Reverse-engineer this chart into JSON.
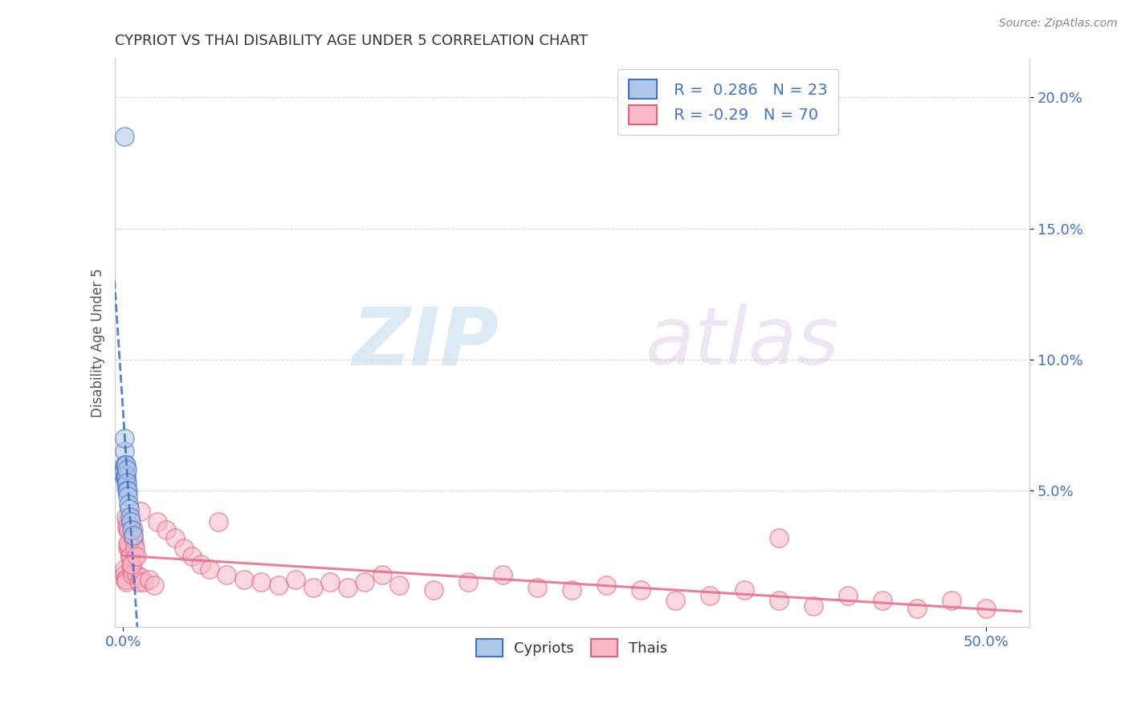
{
  "title": "CYPRIOT VS THAI DISABILITY AGE UNDER 5 CORRELATION CHART",
  "source_text": "Source: ZipAtlas.com",
  "xlim": [
    -0.005,
    0.525
  ],
  "ylim": [
    -0.002,
    0.215
  ],
  "cypriot_fill_color": "#aec6e8",
  "cypriot_edge_color": "#4472c4",
  "thai_fill_color": "#f9b8c8",
  "thai_edge_color": "#e06080",
  "cypriot_line_color": "#3a6bc4",
  "thai_line_color": "#e87090",
  "R_cypriot": 0.286,
  "N_cypriot": 23,
  "R_thai": -0.29,
  "N_thai": 70,
  "legend_label_cypriot": "Cypriots",
  "legend_label_thai": "Thais",
  "watermark_zip": "ZIP",
  "watermark_atlas": "atlas",
  "title_color": "#333333",
  "axis_tick_color": "#4472c4",
  "ylabel_color": "#555555",
  "source_color": "#888888",
  "grid_color": "#cccccc",
  "cypriot_x": [
    0.0008,
    0.0008,
    0.001,
    0.001,
    0.001,
    0.0012,
    0.0012,
    0.0015,
    0.0015,
    0.0018,
    0.0018,
    0.002,
    0.002,
    0.0022,
    0.0025,
    0.0028,
    0.003,
    0.0035,
    0.004,
    0.0045,
    0.005,
    0.006,
    0.0008
  ],
  "cypriot_y": [
    0.185,
    0.06,
    0.055,
    0.065,
    0.058,
    0.06,
    0.055,
    0.06,
    0.055,
    0.056,
    0.052,
    0.058,
    0.053,
    0.05,
    0.05,
    0.048,
    0.045,
    0.043,
    0.04,
    0.038,
    0.035,
    0.033,
    0.07
  ],
  "thai_x": [
    0.0008,
    0.001,
    0.0012,
    0.0015,
    0.0018,
    0.002,
    0.0025,
    0.0028,
    0.003,
    0.0035,
    0.004,
    0.0045,
    0.005,
    0.0055,
    0.006,
    0.0065,
    0.007,
    0.008,
    0.009,
    0.01,
    0.012,
    0.015,
    0.018,
    0.02,
    0.025,
    0.03,
    0.035,
    0.04,
    0.045,
    0.05,
    0.06,
    0.07,
    0.08,
    0.09,
    0.1,
    0.11,
    0.12,
    0.13,
    0.14,
    0.15,
    0.16,
    0.18,
    0.2,
    0.22,
    0.24,
    0.26,
    0.28,
    0.3,
    0.32,
    0.34,
    0.36,
    0.38,
    0.4,
    0.42,
    0.44,
    0.46,
    0.48,
    0.5,
    0.0015,
    0.002,
    0.0025,
    0.003,
    0.004,
    0.005,
    0.006,
    0.007,
    0.008,
    0.01,
    0.38,
    0.055
  ],
  "thai_y": [
    0.02,
    0.018,
    0.016,
    0.016,
    0.015,
    0.038,
    0.035,
    0.028,
    0.03,
    0.028,
    0.025,
    0.022,
    0.02,
    0.018,
    0.035,
    0.03,
    0.025,
    0.018,
    0.015,
    0.017,
    0.015,
    0.016,
    0.014,
    0.038,
    0.035,
    0.032,
    0.028,
    0.025,
    0.022,
    0.02,
    0.018,
    0.016,
    0.015,
    0.014,
    0.016,
    0.013,
    0.015,
    0.013,
    0.015,
    0.018,
    0.014,
    0.012,
    0.015,
    0.018,
    0.013,
    0.012,
    0.014,
    0.012,
    0.008,
    0.01,
    0.012,
    0.008,
    0.006,
    0.01,
    0.008,
    0.005,
    0.008,
    0.005,
    0.04,
    0.036,
    0.03,
    0.035,
    0.025,
    0.022,
    0.032,
    0.028,
    0.025,
    0.042,
    0.032,
    0.038
  ]
}
